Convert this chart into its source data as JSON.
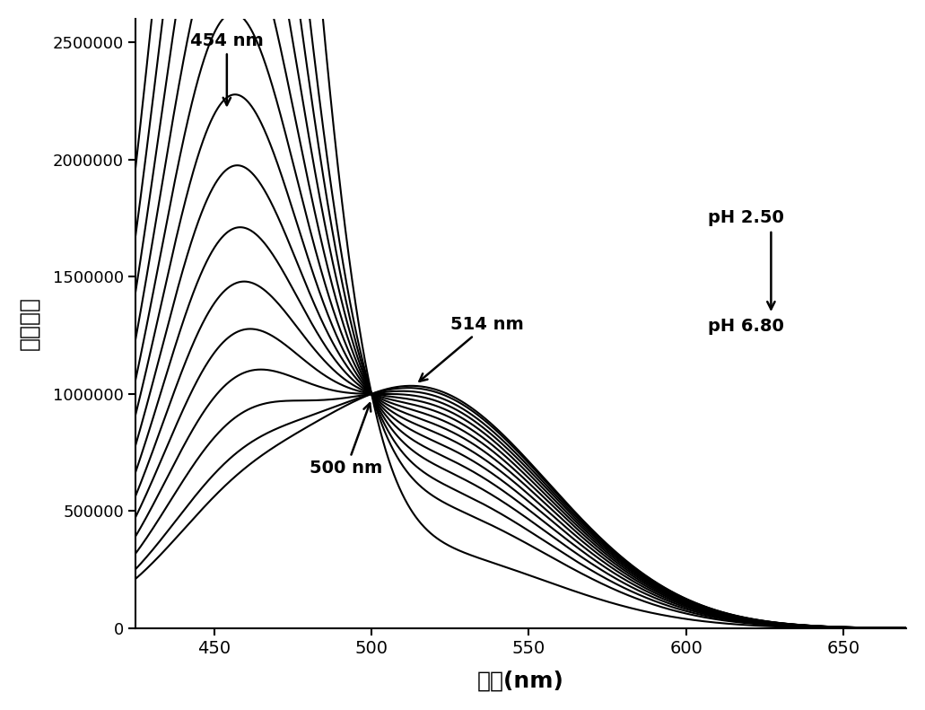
{
  "x_min": 425,
  "x_max": 670,
  "y_min": 0,
  "y_max": 2600000,
  "x_ticks": [
    450,
    500,
    550,
    600,
    650
  ],
  "y_ticks": [
    0,
    500000,
    1000000,
    1500000,
    2000000,
    2500000
  ],
  "xlabel": "波长(nm)",
  "ylabel": "荧光强度",
  "isosbestic_wavelength": 500,
  "isosbestic_intensity": 1000000,
  "peak_low_ph": 454,
  "peak_high_ph": 514,
  "sigma_low": 22,
  "sigma_high": 42,
  "background_color": "#ffffff",
  "line_color": "#000000",
  "ph_values": [
    2.5,
    3.0,
    3.3,
    3.6,
    3.9,
    4.2,
    4.5,
    4.8,
    5.1,
    5.4,
    5.7,
    6.0,
    6.3,
    6.6,
    6.8
  ],
  "ph_min": 2.5,
  "ph_max": 6.8,
  "amp1_low": 2.25,
  "amp1_high": 0.25,
  "amp2_low": 0.12,
  "amp2_high": 1.05
}
